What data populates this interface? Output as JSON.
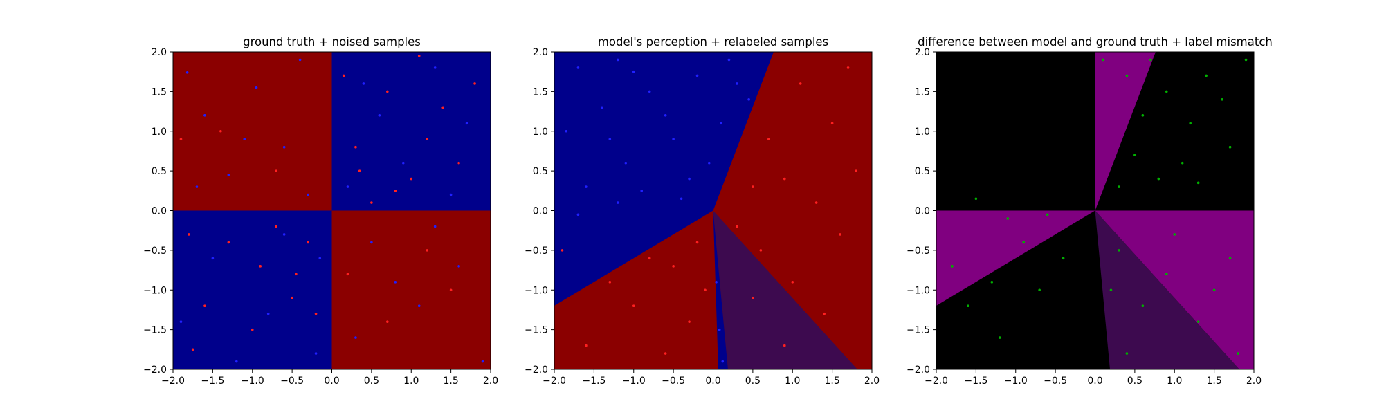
{
  "chart_data": [
    {
      "type": "scatter",
      "title": "ground truth + noised samples",
      "xlim": [
        -2.0,
        2.0
      ],
      "ylim": [
        -2.0,
        2.0
      ],
      "xticks": [
        "−2.0",
        "−1.5",
        "−1.0",
        "−0.5",
        "0.0",
        "0.5",
        "1.0",
        "1.5",
        "2.0"
      ],
      "yticks": [
        "−2.0",
        "−1.5",
        "−1.0",
        "−0.5",
        "0.0",
        "0.5",
        "1.0",
        "1.5",
        "2.0"
      ],
      "grid": false,
      "background": "checkerboard: red (#8b0000) where x*y<0, blue (#00008b) where x*y>0",
      "colors": {
        "red_region": "#8b0000",
        "blue_region": "#00008b",
        "red_points": "#ff2020",
        "blue_points": "#2020ff"
      },
      "series": [
        {
          "color": "#2020ff",
          "points": [
            [
              -1.82,
              1.74
            ],
            [
              -1.6,
              1.2
            ],
            [
              -1.3,
              0.45
            ],
            [
              -0.95,
              1.55
            ],
            [
              -0.6,
              0.8
            ],
            [
              -0.3,
              0.2
            ],
            [
              -1.7,
              0.3
            ],
            [
              -0.4,
              1.9
            ],
            [
              -1.1,
              0.9
            ],
            [
              0.4,
              1.6
            ],
            [
              0.9,
              0.6
            ],
            [
              1.7,
              1.1
            ],
            [
              0.2,
              0.3
            ],
            [
              1.3,
              1.8
            ],
            [
              0.6,
              1.2
            ],
            [
              1.5,
              0.2
            ],
            [
              -1.5,
              -0.6
            ],
            [
              -0.8,
              -1.3
            ],
            [
              -0.2,
              -1.8
            ],
            [
              -1.9,
              -1.4
            ],
            [
              -0.6,
              -0.3
            ],
            [
              -1.2,
              -1.9
            ],
            [
              0.5,
              -0.4
            ],
            [
              1.1,
              -1.2
            ],
            [
              1.6,
              -0.7
            ],
            [
              0.3,
              -1.6
            ],
            [
              1.9,
              -1.9
            ],
            [
              0.8,
              -0.9
            ],
            [
              -0.15,
              -0.6
            ],
            [
              1.3,
              -0.2
            ]
          ]
        },
        {
          "color": "#ff2020",
          "points": [
            [
              -1.4,
              1.0
            ],
            [
              -0.7,
              0.5
            ],
            [
              -1.9,
              0.9
            ],
            [
              0.3,
              0.8
            ],
            [
              0.7,
              1.5
            ],
            [
              1.2,
              0.9
            ],
            [
              1.8,
              1.6
            ],
            [
              0.5,
              0.1
            ],
            [
              1.0,
              0.4
            ],
            [
              1.4,
              1.3
            ],
            [
              0.15,
              1.7
            ],
            [
              1.1,
              1.95
            ],
            [
              0.8,
              0.25
            ],
            [
              1.6,
              0.6
            ],
            [
              0.35,
              0.5
            ],
            [
              -1.3,
              -0.4
            ],
            [
              -0.9,
              -0.7
            ],
            [
              -0.5,
              -1.1
            ],
            [
              -1.6,
              -1.2
            ],
            [
              -0.3,
              -0.4
            ],
            [
              -1.0,
              -1.5
            ],
            [
              -0.7,
              -0.2
            ],
            [
              -0.2,
              -1.3
            ],
            [
              -1.8,
              -0.3
            ],
            [
              -0.45,
              -0.8
            ],
            [
              0.7,
              -1.4
            ],
            [
              1.5,
              -1.0
            ],
            [
              0.2,
              -0.8
            ],
            [
              1.2,
              -0.5
            ],
            [
              -1.75,
              -1.75
            ]
          ]
        }
      ]
    },
    {
      "type": "scatter",
      "title": "model's perception + relabeled samples",
      "xlim": [
        -2.0,
        2.0
      ],
      "ylim": [
        -2.0,
        2.0
      ],
      "xticks": [
        "−2.0",
        "−1.5",
        "−1.0",
        "−0.5",
        "0.0",
        "0.5",
        "1.0",
        "1.5",
        "2.0"
      ],
      "yticks": [
        "−2.0",
        "−1.5",
        "−1.0",
        "−0.5",
        "0.0",
        "0.5",
        "1.0",
        "1.5",
        "2.0"
      ],
      "grid": false,
      "background": "decision regions radiating from the origin: blue wedge in upper-left, red wedges right and lower-left, dark purple wedge lower-right",
      "colors": {
        "red_region": "#8b0000",
        "blue_region": "#00008b",
        "purple_region": "#3d0a4f",
        "red_points": "#ff2020",
        "blue_points": "#2020ff"
      },
      "series": [
        {
          "color": "#2020ff",
          "points": [
            [
              -1.7,
              1.8
            ],
            [
              -1.4,
              1.3
            ],
            [
              -1.1,
              0.6
            ],
            [
              -0.8,
              1.5
            ],
            [
              -0.5,
              0.9
            ],
            [
              -0.2,
              1.7
            ],
            [
              0.2,
              1.9
            ],
            [
              0.45,
              1.4
            ],
            [
              -1.6,
              0.3
            ],
            [
              -1.2,
              1.9
            ],
            [
              -0.9,
              0.25
            ],
            [
              -0.3,
              0.4
            ],
            [
              0.1,
              1.1
            ],
            [
              -1.85,
              1.0
            ],
            [
              -0.6,
              1.2
            ],
            [
              -1.3,
              0.9
            ],
            [
              -0.05,
              0.6
            ],
            [
              0.3,
              1.6
            ],
            [
              -1.0,
              1.75
            ],
            [
              -0.4,
              0.15
            ],
            [
              0.08,
              -1.5
            ],
            [
              0.12,
              -1.9
            ],
            [
              0.04,
              -0.9
            ],
            [
              -1.7,
              -0.05
            ],
            [
              -1.2,
              0.1
            ]
          ]
        },
        {
          "color": "#ff2020",
          "points": [
            [
              1.1,
              1.6
            ],
            [
              1.5,
              1.1
            ],
            [
              1.8,
              0.5
            ],
            [
              0.9,
              0.4
            ],
            [
              1.3,
              0.1
            ],
            [
              0.5,
              0.3
            ],
            [
              1.7,
              1.8
            ],
            [
              0.7,
              0.9
            ],
            [
              -0.5,
              -0.7
            ],
            [
              -1.0,
              -1.2
            ],
            [
              -1.6,
              -1.7
            ],
            [
              -0.3,
              -1.4
            ],
            [
              -0.8,
              -0.6
            ],
            [
              -1.3,
              -0.9
            ],
            [
              -0.2,
              -0.4
            ],
            [
              0.6,
              -0.5
            ],
            [
              1.0,
              -0.9
            ],
            [
              1.4,
              -1.3
            ],
            [
              0.5,
              -1.1
            ],
            [
              0.9,
              -1.7
            ],
            [
              1.6,
              -0.3
            ],
            [
              0.3,
              -0.2
            ],
            [
              -0.6,
              -1.8
            ],
            [
              -1.9,
              -0.5
            ],
            [
              -0.1,
              -1.0
            ]
          ]
        }
      ]
    },
    {
      "type": "scatter",
      "title": "difference between model and ground truth + label mismatch",
      "xlim": [
        -2.0,
        2.0
      ],
      "ylim": [
        -2.0,
        2.0
      ],
      "xticks": [
        "−2.0",
        "−1.5",
        "−1.0",
        "−0.5",
        "0.0",
        "0.5",
        "1.0",
        "1.5",
        "2.0"
      ],
      "yticks": [
        "−2.0",
        "−1.5",
        "−1.0",
        "−0.5",
        "0.0",
        "0.5",
        "1.0",
        "1.5",
        "2.0"
      ],
      "grid": false,
      "background": "black where model agrees with ground truth, purple where it differs",
      "colors": {
        "agree_region": "#000000",
        "differ_region": "#800080",
        "dark_purple_region": "#3d0a4f",
        "mismatch_points": "#00b000"
      },
      "series": [
        {
          "color": "#00b000",
          "points": [
            [
              0.1,
              1.9
            ],
            [
              0.4,
              1.7
            ],
            [
              0.6,
              1.2
            ],
            [
              0.9,
              1.5
            ],
            [
              1.2,
              1.1
            ],
            [
              1.4,
              1.7
            ],
            [
              1.7,
              0.8
            ],
            [
              0.5,
              0.7
            ],
            [
              0.8,
              0.4
            ],
            [
              1.1,
              0.6
            ],
            [
              0.3,
              0.3
            ],
            [
              1.6,
              1.4
            ],
            [
              1.9,
              1.9
            ],
            [
              0.7,
              1.9
            ],
            [
              1.3,
              0.35
            ],
            [
              -1.5,
              0.15
            ],
            [
              -1.1,
              -0.1
            ],
            [
              -0.6,
              -0.05
            ],
            [
              -1.8,
              -0.7
            ],
            [
              -1.3,
              -0.9
            ],
            [
              -0.9,
              -0.4
            ],
            [
              -1.6,
              -1.2
            ],
            [
              -0.4,
              -0.6
            ],
            [
              -1.2,
              -1.6
            ],
            [
              -0.7,
              -1.0
            ],
            [
              0.3,
              -0.5
            ],
            [
              0.6,
              -1.2
            ],
            [
              0.9,
              -0.8
            ],
            [
              1.3,
              -1.4
            ],
            [
              1.7,
              -0.6
            ],
            [
              0.4,
              -1.8
            ],
            [
              1.0,
              -0.3
            ],
            [
              1.5,
              -1.0
            ],
            [
              0.2,
              -1.0
            ],
            [
              1.8,
              -1.8
            ]
          ]
        }
      ]
    }
  ]
}
